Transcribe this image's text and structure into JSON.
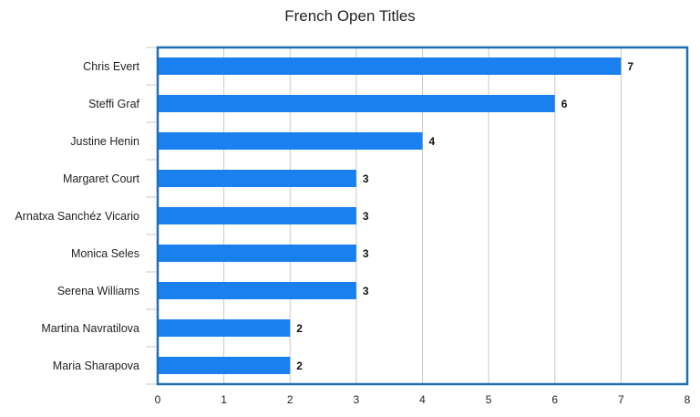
{
  "chart_data": {
    "type": "bar",
    "orientation": "horizontal",
    "title": "French Open Titles",
    "xlabel": "",
    "ylabel": "",
    "categories": [
      "Chris Evert",
      "Steffi Graf",
      "Justine Henin",
      "Margaret Court",
      "Arnatxa Sanchéz Vicario",
      "Monica Seles",
      "Serena Williams",
      "Martina Navratilova",
      "Maria Sharapova"
    ],
    "values": [
      7,
      6,
      4,
      3,
      3,
      3,
      3,
      2,
      2
    ],
    "xlim": [
      0,
      8
    ],
    "x_ticks": [
      "0",
      "1",
      "2",
      "3",
      "4",
      "5",
      "6",
      "7",
      "8"
    ],
    "data_labels": [
      "7",
      "6",
      "4",
      "3",
      "3",
      "3",
      "3",
      "2",
      "2"
    ],
    "grid": true,
    "legend": "none",
    "colors": {
      "bar": "#1a80f0",
      "frame": "#1f6fb5",
      "grid": "#c8c8c8"
    }
  }
}
